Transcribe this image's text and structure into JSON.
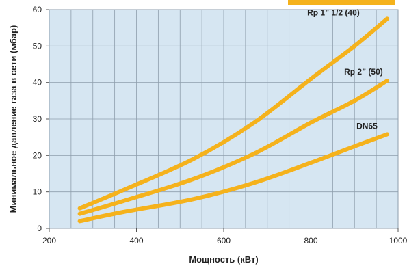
{
  "chart_data": {
    "type": "line",
    "title": "",
    "xlabel": "Мощность  (кВт)",
    "ylabel": "Минимальное давление газа в сети (мбар)",
    "xlim": [
      200,
      1000
    ],
    "ylim": [
      0,
      60
    ],
    "x_ticks": [
      200,
      400,
      600,
      800,
      1000
    ],
    "y_ticks": [
      0,
      10,
      20,
      30,
      40,
      50,
      60
    ],
    "grid": true,
    "colors": {
      "line": "#f5b21c",
      "plot_bg": "#d6e6f2",
      "grid": "#8e9eac",
      "accent_bar": "#f5b21c"
    },
    "series": [
      {
        "name": "Rp 1” 1/2 (40)",
        "x": [
          270,
          370,
          530,
          670,
          800,
          900,
          975
        ],
        "y": [
          5.5,
          10.5,
          19,
          29,
          41,
          50,
          57.5
        ]
      },
      {
        "name": "Rp 2” (50)",
        "x": [
          270,
          370,
          530,
          670,
          800,
          900,
          975
        ],
        "y": [
          4,
          7.5,
          13.5,
          20.5,
          29,
          35,
          40.5
        ]
      },
      {
        "name": "DN65",
        "x": [
          270,
          370,
          530,
          670,
          800,
          900,
          975
        ],
        "y": [
          2,
          4.5,
          8,
          12.5,
          18,
          22.5,
          25.8
        ]
      }
    ]
  }
}
